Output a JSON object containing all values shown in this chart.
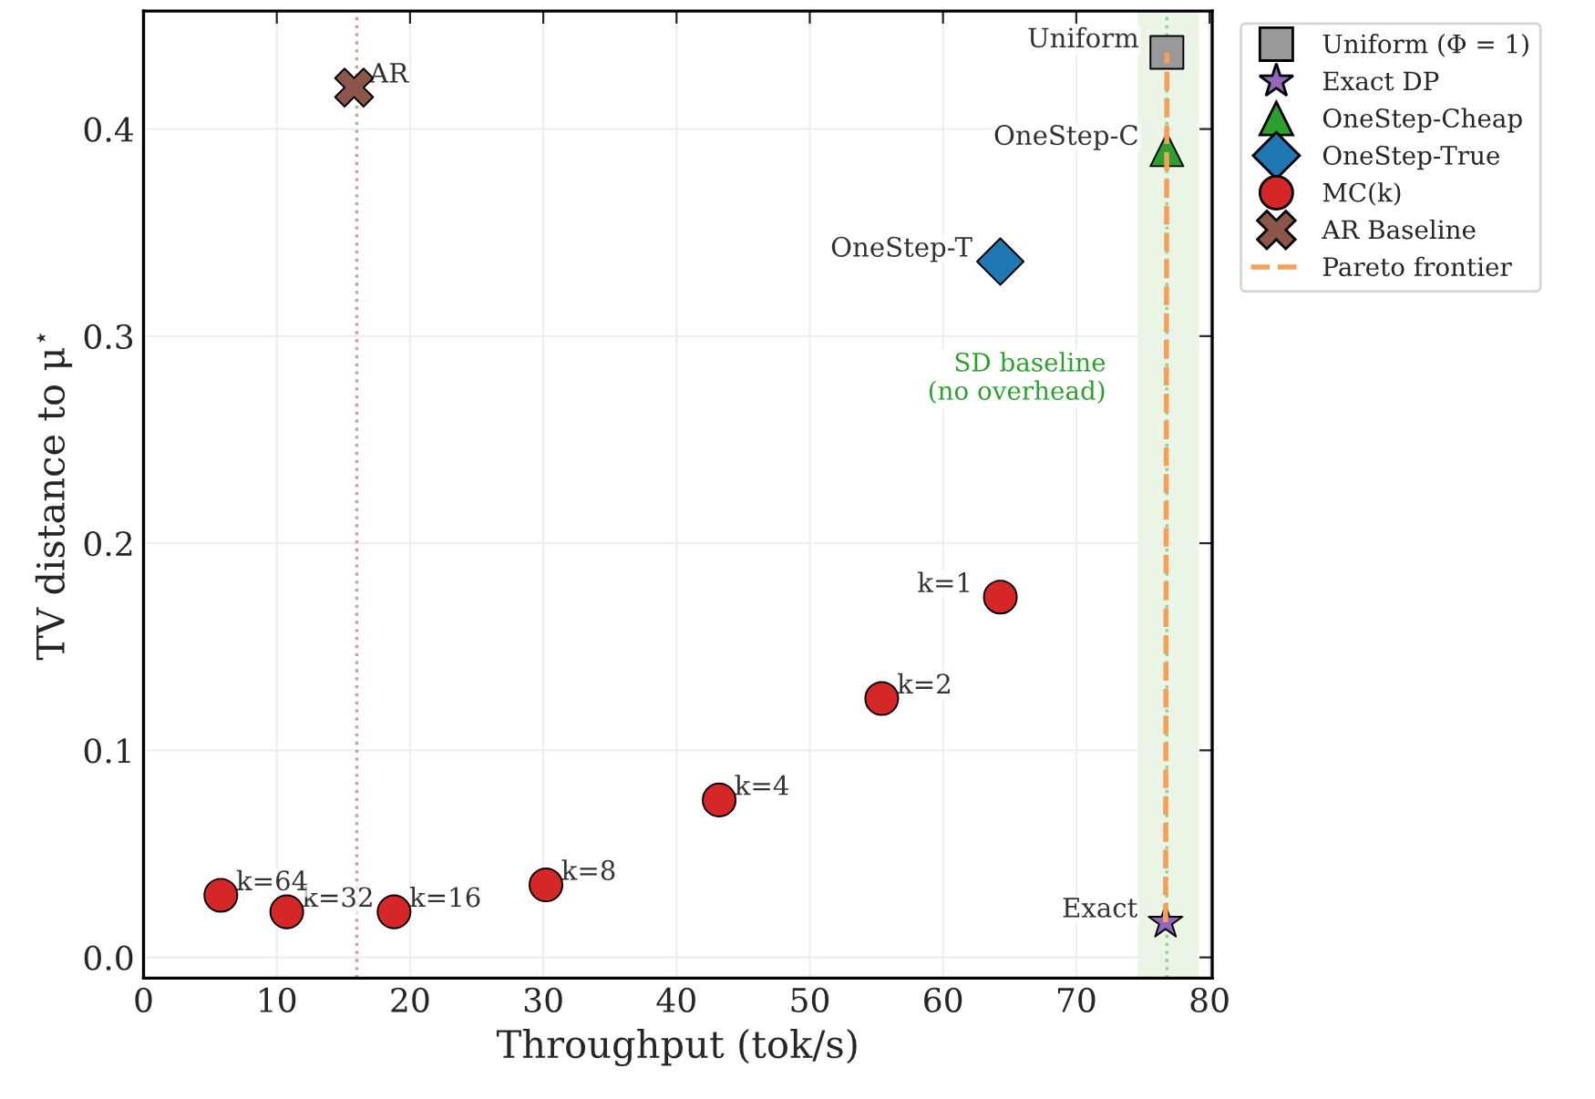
{
  "chart_data": {
    "type": "scatter",
    "xlabel": "Throughput (tok/s)",
    "ylabel": "TV distance to μ$^{⋆}$",
    "xlim": [
      0,
      80.2
    ],
    "ylim": [
      -0.01,
      0.457
    ],
    "xticks": [
      0,
      10,
      20,
      30,
      40,
      50,
      60,
      70,
      80
    ],
    "yticks": [
      {
        "value": 0,
        "label": "0.0"
      },
      {
        "value": 0.1,
        "label": "0.1"
      },
      {
        "value": 0.2,
        "label": "0.2"
      },
      {
        "value": 0.3,
        "label": "0.3"
      },
      {
        "value": 0.4,
        "label": "0.4"
      }
    ],
    "grid": true,
    "legend": "top right",
    "series": [
      {
        "name": "Uniform (Φ = 1)",
        "marker": "square",
        "color": "#999999",
        "x": [
          76.8
        ],
        "values": [
          0.437
        ]
      },
      {
        "name": "Exact DP",
        "marker": "star",
        "color": "#9467bd",
        "x": [
          76.7
        ],
        "values": [
          0.017
        ]
      },
      {
        "name": "OneStep-Cheap",
        "marker": "triangle",
        "color": "#2ca02c",
        "x": [
          76.8
        ],
        "values": [
          0.39
        ]
      },
      {
        "name": "OneStep-True",
        "marker": "diamond",
        "color": "#1f77b4",
        "x": [
          64.3
        ],
        "values": [
          0.336
        ]
      },
      {
        "name": "MC(k)",
        "marker": "circle",
        "color": "#d62728",
        "x": [
          64.3,
          55.4,
          43.2,
          30.2,
          18.8,
          10.75,
          5.8
        ],
        "values": [
          0.174,
          0.125,
          0.076,
          0.035,
          0.022,
          0.022,
          0.03
        ]
      },
      {
        "name": "AR Baseline",
        "marker": "cross",
        "color": "#8c564b",
        "x": [
          15.8
        ],
        "values": [
          0.42
        ]
      },
      {
        "name": "Pareto frontier",
        "type": "line",
        "line_style": "dashed",
        "marker": "none",
        "color": "#f5a05a",
        "x": [
          76.7,
          76.8
        ],
        "values": [
          0.017,
          0.437
        ]
      }
    ],
    "ref_lines": [
      {
        "axis": "x",
        "value": 16,
        "color": "#c9a0a0",
        "line_style": "dotted"
      },
      {
        "axis": "x",
        "value": 76.8,
        "color": "#8fd18f",
        "line_style": "dotted",
        "label": "SD baseline\n(no overhead)"
      }
    ],
    "bands": [
      {
        "axis": "x",
        "from": 74.6,
        "to": 79.2,
        "color": "#eaf5e6"
      }
    ],
    "annotations": [
      {
        "text": "Uniform",
        "x": 76.8,
        "y": 0.437
      },
      {
        "text": "OneStep-C",
        "x": 76.8,
        "y": 0.39
      },
      {
        "text": "OneStep-T",
        "x": 64.3,
        "y": 0.336
      },
      {
        "text": "AR",
        "x": 15.8,
        "y": 0.42
      },
      {
        "text": "k=1",
        "x": 64.3,
        "y": 0.174
      },
      {
        "text": "k=2",
        "x": 55.4,
        "y": 0.125
      },
      {
        "text": "k=4",
        "x": 43.2,
        "y": 0.076
      },
      {
        "text": "k=8",
        "x": 30.2,
        "y": 0.035
      },
      {
        "text": "k=16",
        "x": 18.8,
        "y": 0.022
      },
      {
        "text": "k=32",
        "x": 10.75,
        "y": 0.022
      },
      {
        "text": "k=64",
        "x": 5.8,
        "y": 0.03
      },
      {
        "text": "Exact",
        "x": 76.7,
        "y": 0.017
      }
    ]
  }
}
